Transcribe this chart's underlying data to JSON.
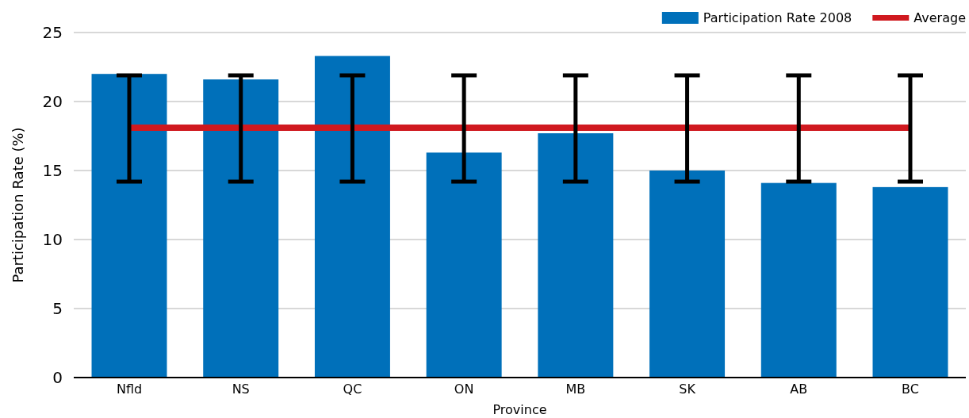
{
  "chart_data": {
    "type": "bar",
    "xlabel": "Province",
    "ylabel": "Participation Rate (%)",
    "categories": [
      "Nfld",
      "NS",
      "QC",
      "ON",
      "MB",
      "SK",
      "AB",
      "BC"
    ],
    "series": [
      {
        "name": "Participation Rate 2008",
        "color": "#0070ba",
        "values": [
          22.0,
          21.6,
          23.3,
          16.3,
          17.7,
          15.0,
          14.1,
          13.8
        ]
      },
      {
        "name": "Average",
        "type": "line",
        "color": "#d0191f",
        "values": [
          18.1,
          18.1,
          18.1,
          18.1,
          18.1,
          18.1,
          18.1,
          18.1
        ],
        "errors": [
          [
            14.2,
            21.9
          ],
          [
            14.2,
            21.9
          ],
          [
            14.2,
            21.9
          ],
          [
            14.2,
            21.9
          ],
          [
            14.2,
            21.9
          ],
          [
            14.2,
            21.9
          ],
          [
            14.2,
            21.9
          ],
          [
            14.2,
            21.9
          ]
        ]
      }
    ],
    "ylim": [
      0,
      25
    ],
    "yticks": [
      0,
      5,
      10,
      15,
      20,
      25
    ],
    "grid": "y",
    "legend": "top right",
    "marker": "none",
    "line_style": "solid"
  }
}
